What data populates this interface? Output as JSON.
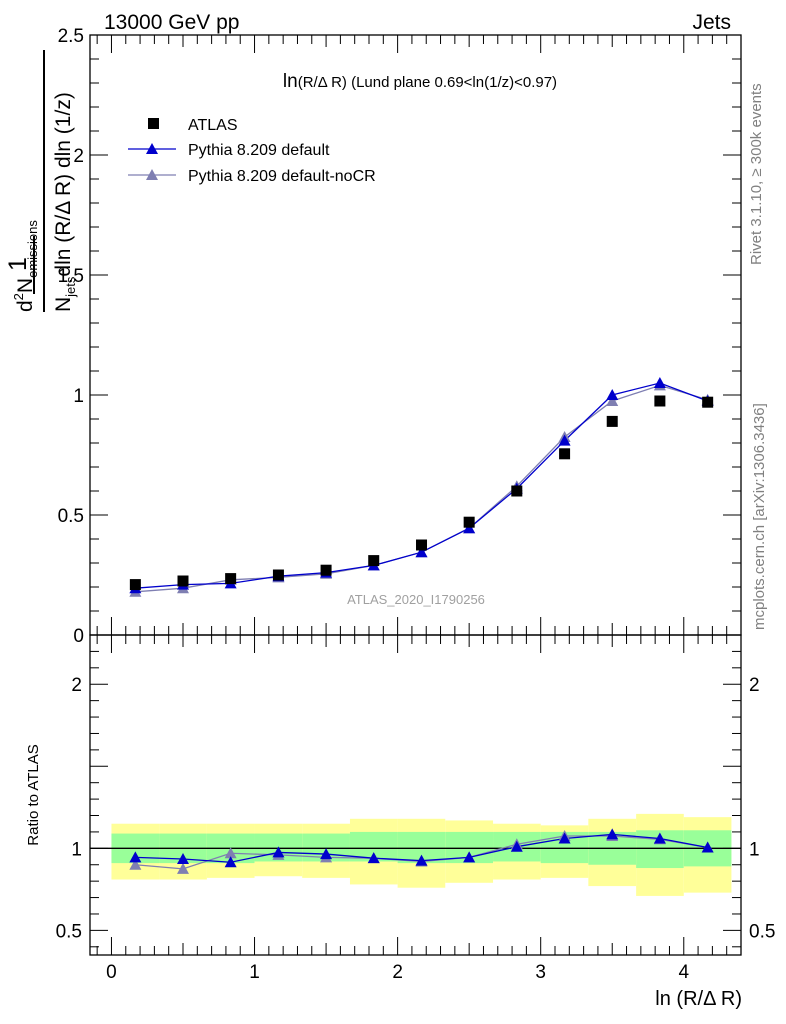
{
  "header": {
    "left": "13000 GeV pp",
    "right": "Jets"
  },
  "side_labels": {
    "rivet": "Rivet 3.1.10, ≥ 300k events",
    "mcplots": "mcplots.cern.ch [arXiv:1306.3436]"
  },
  "watermark": "ATLAS_2020_I1790256",
  "colors": {
    "atlas": "#000000",
    "pythia_default": "#0000cc",
    "pythia_nocr": "#7f7fb2",
    "band_inner": "#99ff99",
    "band_outer": "#ffff99"
  },
  "chart_data": [
    {
      "type": "line",
      "title": "ln(R/Δ R) (Lund plane 0.69<ln(1/z)<0.97)",
      "title_parts": {
        "main": "ln",
        "sub": "(R/Δ R)",
        "rest": "  (Lund plane 0.69<ln(1/z)<0.97)"
      },
      "ylabel": "1/N_jets dN_emissions/dln(R/ΔR) dln(1/z)",
      "ylabel_parts": {
        "frac_one": "1",
        "num_d": "d",
        "num_sup": "2",
        "num_N": "N",
        "num_sub": "emissions",
        "den_N": "N",
        "den_sub": "jets",
        "den_rest": "dln (R/Δ R) dln (1/z)"
      },
      "xlim": [
        -0.15,
        4.4
      ],
      "ylim": [
        0,
        2.5
      ],
      "yticks": [
        {
          "v": 0,
          "label": "0"
        },
        {
          "v": 0.5,
          "label": "0.5"
        },
        {
          "v": 1,
          "label": "1"
        },
        {
          "v": 1.5,
          "label": "1.5"
        },
        {
          "v": 2,
          "label": "2"
        },
        {
          "v": 2.5,
          "label": "2.5"
        }
      ],
      "legend": [
        {
          "label": "ATLAS",
          "marker": "square"
        },
        {
          "label": "Pythia 8.209 default",
          "marker": "triangle"
        },
        {
          "label": "Pythia 8.209 default-noCR",
          "marker": "triangle"
        }
      ],
      "x": [
        0.167,
        0.5,
        0.833,
        1.167,
        1.5,
        1.833,
        2.167,
        2.5,
        2.833,
        3.167,
        3.5,
        3.833,
        4.167
      ],
      "series": [
        {
          "name": "ATLAS",
          "values": [
            0.21,
            0.225,
            0.235,
            0.25,
            0.27,
            0.31,
            0.375,
            0.47,
            0.6,
            0.755,
            0.89,
            0.975,
            0.97
          ]
        },
        {
          "name": "Pythia 8.209 default",
          "values": [
            0.195,
            0.21,
            0.215,
            0.245,
            0.26,
            0.29,
            0.345,
            0.445,
            0.61,
            0.81,
            1.0,
            1.05,
            0.975
          ]
        },
        {
          "name": "Pythia 8.209 default-noCR",
          "values": [
            0.18,
            0.195,
            0.23,
            0.24,
            0.255,
            0.29,
            0.345,
            0.445,
            0.62,
            0.825,
            0.975,
            1.04,
            0.98
          ]
        }
      ]
    },
    {
      "type": "line",
      "ylabel": "Ratio to ATLAS",
      "xlabel": "ln (R/Δ R)",
      "xlim": [
        -0.15,
        4.4
      ],
      "ylim": [
        0.35,
        2.3
      ],
      "xticks": [
        {
          "v": 0,
          "label": "0"
        },
        {
          "v": 1,
          "label": "1"
        },
        {
          "v": 2,
          "label": "2"
        },
        {
          "v": 3,
          "label": "3"
        },
        {
          "v": 4,
          "label": "4"
        }
      ],
      "yticks": [
        {
          "v": 0.5,
          "label": "0.5"
        },
        {
          "v": 1,
          "label": "1"
        },
        {
          "v": 2,
          "label": "2"
        }
      ],
      "bin_edges": [
        0,
        0.333,
        0.667,
        1.0,
        1.333,
        1.667,
        2.0,
        2.333,
        2.667,
        3.0,
        3.333,
        3.667,
        4.0,
        4.333
      ],
      "band_inner": [
        [
          0.91,
          1.09
        ],
        [
          0.91,
          1.09
        ],
        [
          0.91,
          1.09
        ],
        [
          0.92,
          1.09
        ],
        [
          0.92,
          1.09
        ],
        [
          0.92,
          1.1
        ],
        [
          0.91,
          1.1
        ],
        [
          0.91,
          1.1
        ],
        [
          0.92,
          1.1
        ],
        [
          0.91,
          1.1
        ],
        [
          0.9,
          1.1
        ],
        [
          0.88,
          1.11
        ],
        [
          0.89,
          1.11
        ]
      ],
      "band_outer": [
        [
          0.81,
          1.15
        ],
        [
          0.81,
          1.15
        ],
        [
          0.82,
          1.15
        ],
        [
          0.83,
          1.15
        ],
        [
          0.82,
          1.15
        ],
        [
          0.78,
          1.18
        ],
        [
          0.76,
          1.18
        ],
        [
          0.79,
          1.17
        ],
        [
          0.81,
          1.15
        ],
        [
          0.82,
          1.14
        ],
        [
          0.77,
          1.18
        ],
        [
          0.71,
          1.21
        ],
        [
          0.73,
          1.19
        ]
      ],
      "x": [
        0.167,
        0.5,
        0.833,
        1.167,
        1.5,
        1.833,
        2.167,
        2.5,
        2.833,
        3.167,
        3.5,
        3.833,
        4.167
      ],
      "series": [
        {
          "name": "Pythia 8.209 default",
          "values": [
            0.945,
            0.935,
            0.915,
            0.975,
            0.965,
            0.94,
            0.925,
            0.945,
            1.01,
            1.06,
            1.085,
            1.06,
            1.005
          ]
        },
        {
          "name": "Pythia 8.209 default-noCR",
          "values": [
            0.9,
            0.875,
            0.97,
            0.96,
            0.945,
            0.94,
            0.92,
            0.945,
            1.025,
            1.075,
            1.075,
            1.055,
            1.005
          ]
        }
      ]
    }
  ]
}
